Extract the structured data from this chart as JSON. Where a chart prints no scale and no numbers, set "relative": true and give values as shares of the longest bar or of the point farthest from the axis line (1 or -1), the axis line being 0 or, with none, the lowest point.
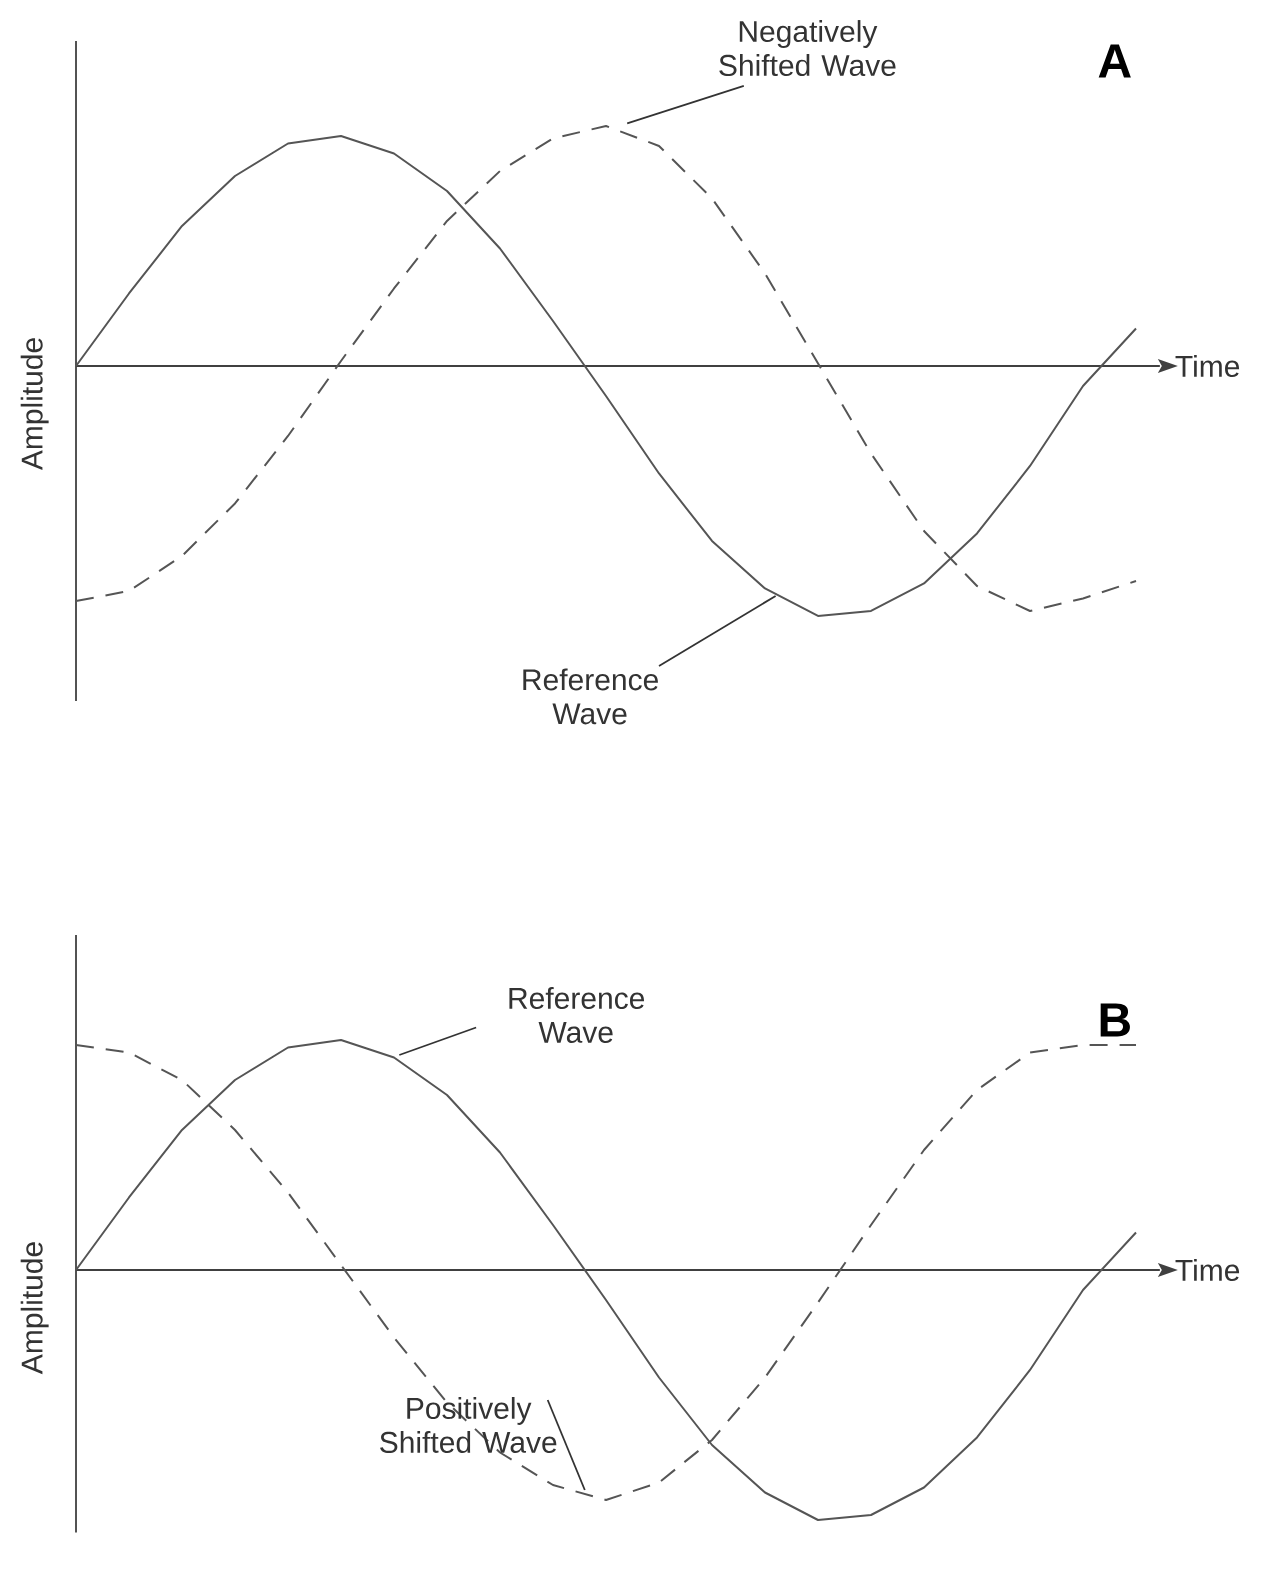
{
  "chart_data": [
    {
      "type": "line",
      "title": "A",
      "xlabel": "Time",
      "ylabel": "Amplitude",
      "relative": true,
      "categories": [
        null,
        null,
        null,
        null,
        null,
        null,
        null,
        null,
        null,
        null,
        null,
        null,
        null,
        null,
        null,
        null,
        null,
        null,
        null,
        null,
        null
      ],
      "series": [
        {
          "name": "Reference Wave",
          "color": "#555555",
          "line_style": "solid",
          "values": [
            0,
            0.29,
            0.56,
            0.76,
            0.89,
            0.92,
            0.85,
            0.7,
            0.47,
            0.18,
            -0.12,
            -0.43,
            -0.7,
            -0.89,
            -1,
            -0.98,
            -0.87,
            -0.67,
            -0.4,
            -0.08,
            0.15
          ]
        },
        {
          "name": "Negatively Shifted Wave",
          "color": "#555555",
          "line_style": "dashed",
          "values": [
            -0.94,
            -0.9,
            -0.76,
            -0.55,
            -0.28,
            0.02,
            0.31,
            0.58,
            0.78,
            0.91,
            0.96,
            0.88,
            0.67,
            0.37,
            0.01,
            -0.35,
            -0.66,
            -0.88,
            -0.98,
            -0.93,
            -0.86
          ]
        }
      ]
    },
    {
      "type": "line",
      "title": "B",
      "xlabel": "Time",
      "ylabel": "Amplitude",
      "relative": true,
      "categories": [
        null,
        null,
        null,
        null,
        null,
        null,
        null,
        null,
        null,
        null,
        null,
        null,
        null,
        null,
        null,
        null,
        null,
        null,
        null,
        null,
        null
      ],
      "series": [
        {
          "name": "Reference Wave",
          "color": "#555555",
          "line_style": "solid",
          "values": [
            0,
            0.29,
            0.56,
            0.76,
            0.89,
            0.92,
            0.85,
            0.7,
            0.47,
            0.18,
            -0.12,
            -0.43,
            -0.7,
            -0.89,
            -1,
            -0.98,
            -0.87,
            -0.67,
            -0.4,
            -0.08,
            0.15
          ]
        },
        {
          "name": "Positively Shifted Wave",
          "color": "#555555",
          "line_style": "dashed",
          "values": [
            0.9,
            0.87,
            0.76,
            0.56,
            0.31,
            0.02,
            -0.27,
            -0.53,
            -0.73,
            -0.86,
            -0.92,
            -0.85,
            -0.68,
            -0.43,
            -0.13,
            0.18,
            0.48,
            0.72,
            0.87,
            0.9,
            0.9
          ]
        }
      ]
    }
  ]
}
